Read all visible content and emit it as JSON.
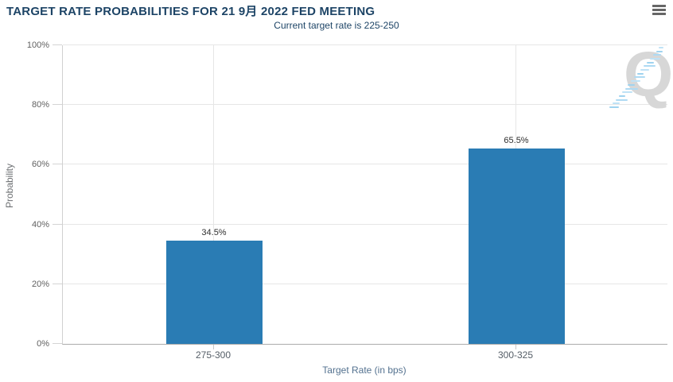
{
  "header": {
    "menu_icon": "hamburger-menu-icon"
  },
  "watermark": {
    "letter": "Q"
  },
  "chart_data": {
    "type": "bar",
    "title": "TARGET RATE PROBABILITIES FOR 21 9月 2022 FED MEETING",
    "subtitle": "Current target rate is 225-250",
    "categories": [
      "275-300",
      "300-325"
    ],
    "values": [
      34.5,
      65.5
    ],
    "data_labels": [
      "34.5%",
      "65.5%"
    ],
    "xlabel": "Target Rate (in bps)",
    "ylabel": "Probability",
    "ylim": [
      0,
      100
    ],
    "yticks": [
      0,
      20,
      40,
      60,
      80,
      100
    ],
    "ytick_suffix": "%",
    "grid": true,
    "legend_position": "none",
    "colors": {
      "bar": "#2a7cb4",
      "title": "#1d4466",
      "subtitle": "#1d4466",
      "gridline": "#e6e6e6",
      "watermark_letter": "#d7d7d7",
      "watermark_dash": "#9fd3ef"
    }
  }
}
